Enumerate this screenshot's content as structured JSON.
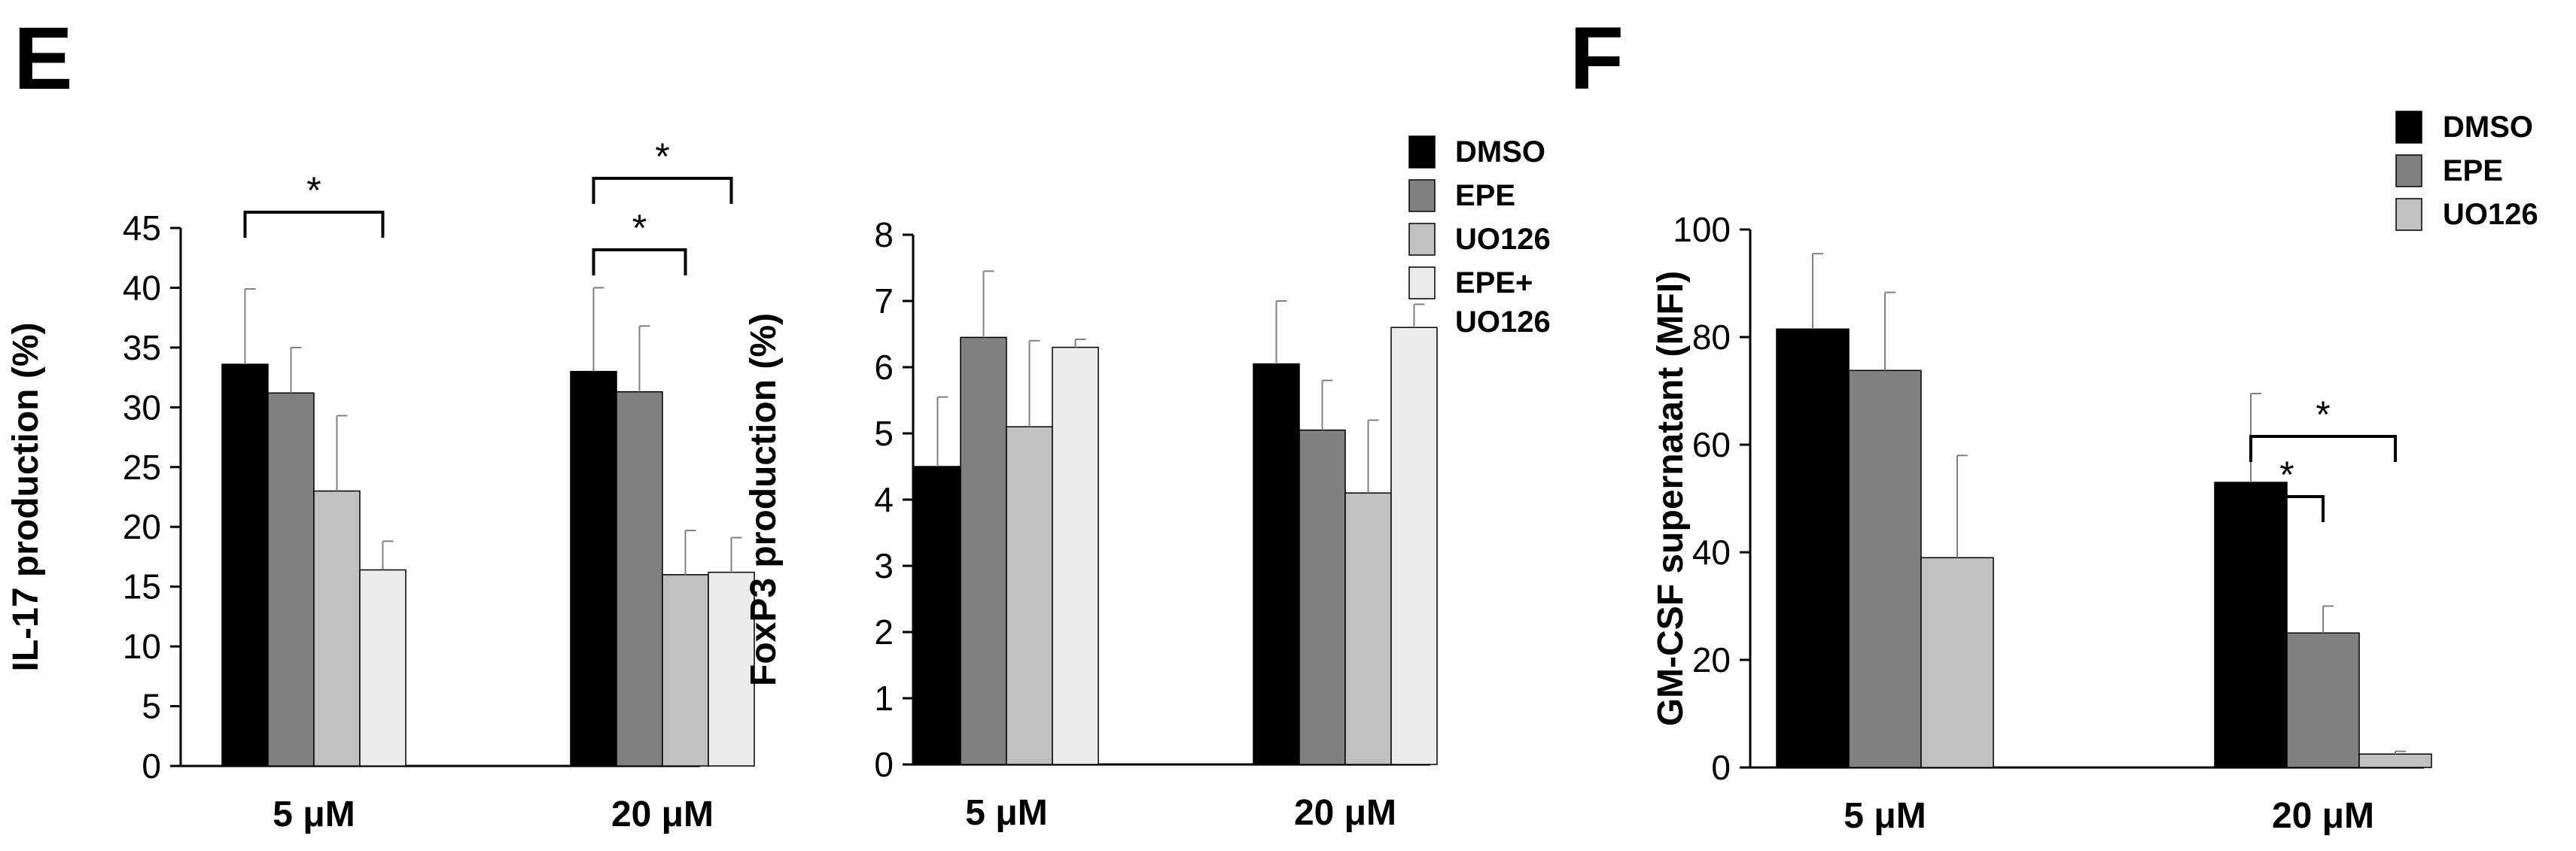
{
  "panels": [
    {
      "letter": "E"
    },
    {
      "letter": "F"
    }
  ],
  "colors": {
    "DMSO": "#000000",
    "EPE": "#808080",
    "UO126": "#c0c0c0",
    "EPE+UO126": "#ebebeb",
    "edge": "#000000"
  },
  "chart_data": [
    {
      "type": "bar",
      "panel": "E",
      "ylabel": "IL-17 production (%)",
      "xlabel": "",
      "categories": [
        "5 μM",
        "20 μM"
      ],
      "ylim": [
        0,
        45
      ],
      "yticks": [
        0,
        5,
        10,
        15,
        20,
        25,
        30,
        35,
        40,
        45
      ],
      "series": [
        {
          "name": "DMSO",
          "values": [
            33.6,
            33.0
          ],
          "errors": [
            6.3,
            7.0
          ]
        },
        {
          "name": "EPE",
          "values": [
            31.2,
            31.3
          ],
          "errors": [
            3.8,
            5.5
          ]
        },
        {
          "name": "UO126",
          "values": [
            23.0,
            16.0
          ],
          "errors": [
            6.3,
            3.7
          ]
        },
        {
          "name": "EPE+UO126",
          "values": [
            16.4,
            16.2
          ],
          "errors": [
            2.4,
            2.9
          ]
        }
      ],
      "significance": [
        {
          "group": 0,
          "from": 0,
          "to": 3,
          "label": "*"
        },
        {
          "group": 1,
          "from": 0,
          "to": 2,
          "label": "*"
        },
        {
          "group": 1,
          "from": 0,
          "to": 3,
          "label": "*"
        }
      ]
    },
    {
      "type": "bar",
      "panel": "E",
      "ylabel": "FoxP3 production (%)",
      "xlabel": "",
      "categories": [
        "5 μM",
        "20 μM"
      ],
      "ylim": [
        0,
        8
      ],
      "yticks": [
        0,
        1,
        2,
        3,
        4,
        5,
        6,
        7,
        8
      ],
      "series": [
        {
          "name": "DMSO",
          "values": [
            4.5,
            6.05
          ],
          "errors": [
            1.05,
            0.95
          ]
        },
        {
          "name": "EPE",
          "values": [
            6.45,
            5.05
          ],
          "errors": [
            1.0,
            0.75
          ]
        },
        {
          "name": "UO126",
          "values": [
            5.1,
            4.1
          ],
          "errors": [
            1.3,
            1.1
          ]
        },
        {
          "name": "EPE+UO126",
          "values": [
            6.3,
            6.6
          ],
          "errors": [
            0.12,
            0.35
          ]
        }
      ],
      "legend": {
        "position": "right",
        "entries": [
          {
            "series": "DMSO",
            "lines": [
              "DMSO"
            ]
          },
          {
            "series": "EPE",
            "lines": [
              "EPE"
            ]
          },
          {
            "series": "UO126",
            "lines": [
              "UO126"
            ]
          },
          {
            "series": "EPE+UO126",
            "lines": [
              "EPE+",
              "UO126"
            ]
          }
        ]
      }
    },
    {
      "type": "bar",
      "panel": "F",
      "ylabel": "GM-CSF supernatant (MFI)",
      "xlabel": "",
      "categories": [
        "5 μM",
        "20 μM"
      ],
      "ylim": [
        0,
        100
      ],
      "yticks": [
        0,
        20,
        40,
        60,
        80,
        100
      ],
      "series": [
        {
          "name": "DMSO",
          "values": [
            81.5,
            53.0
          ],
          "errors": [
            14.0,
            16.5
          ]
        },
        {
          "name": "EPE",
          "values": [
            73.8,
            25.0
          ],
          "errors": [
            14.5,
            5.0
          ]
        },
        {
          "name": "UO126",
          "values": [
            39.0,
            2.5
          ],
          "errors": [
            19.0,
            0.5
          ]
        }
      ],
      "significance": [
        {
          "group": 1,
          "from": 0,
          "to": 1,
          "label": "*"
        },
        {
          "group": 1,
          "from": 0,
          "to": 2,
          "label": "*"
        }
      ],
      "legend": {
        "position": "top-right",
        "entries": [
          {
            "series": "DMSO",
            "lines": [
              "DMSO"
            ]
          },
          {
            "series": "EPE",
            "lines": [
              "EPE"
            ]
          },
          {
            "series": "UO126",
            "lines": [
              "UO126"
            ]
          }
        ]
      }
    }
  ]
}
